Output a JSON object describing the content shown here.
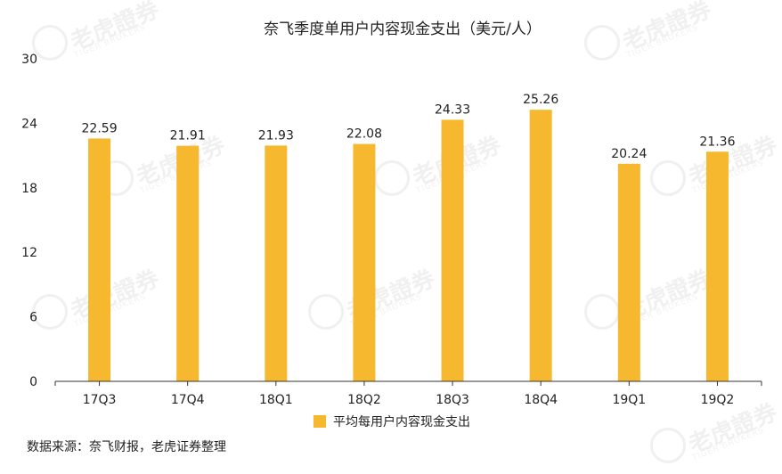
{
  "source_text": "数据来源：奈飞财报，老虎证券整理",
  "watermark": {
    "text": "老虎證券",
    "sub": "TIGER BROKERS"
  },
  "colors": {
    "bar": "#F5B82E",
    "axis": "#333333",
    "text": "#222222"
  },
  "chart_data": {
    "type": "bar",
    "title": "奈飞季度单用户内容现金支出（美元/人）",
    "categories": [
      "17Q3",
      "17Q4",
      "18Q1",
      "18Q2",
      "18Q3",
      "18Q4",
      "19Q1",
      "19Q2"
    ],
    "series": [
      {
        "name": "平均每用户内容现金支出",
        "values": [
          22.59,
          21.91,
          21.93,
          22.08,
          24.33,
          25.26,
          20.24,
          21.36
        ]
      }
    ],
    "data_labels": [
      "22.59",
      "21.91",
      "21.93",
      "22.08",
      "24.33",
      "25.26",
      "20.24",
      "21.36"
    ],
    "ylim": [
      0,
      30
    ],
    "yticks": [
      0,
      6,
      12,
      18,
      24,
      30
    ],
    "grid": false,
    "legend": "bottom-center"
  }
}
